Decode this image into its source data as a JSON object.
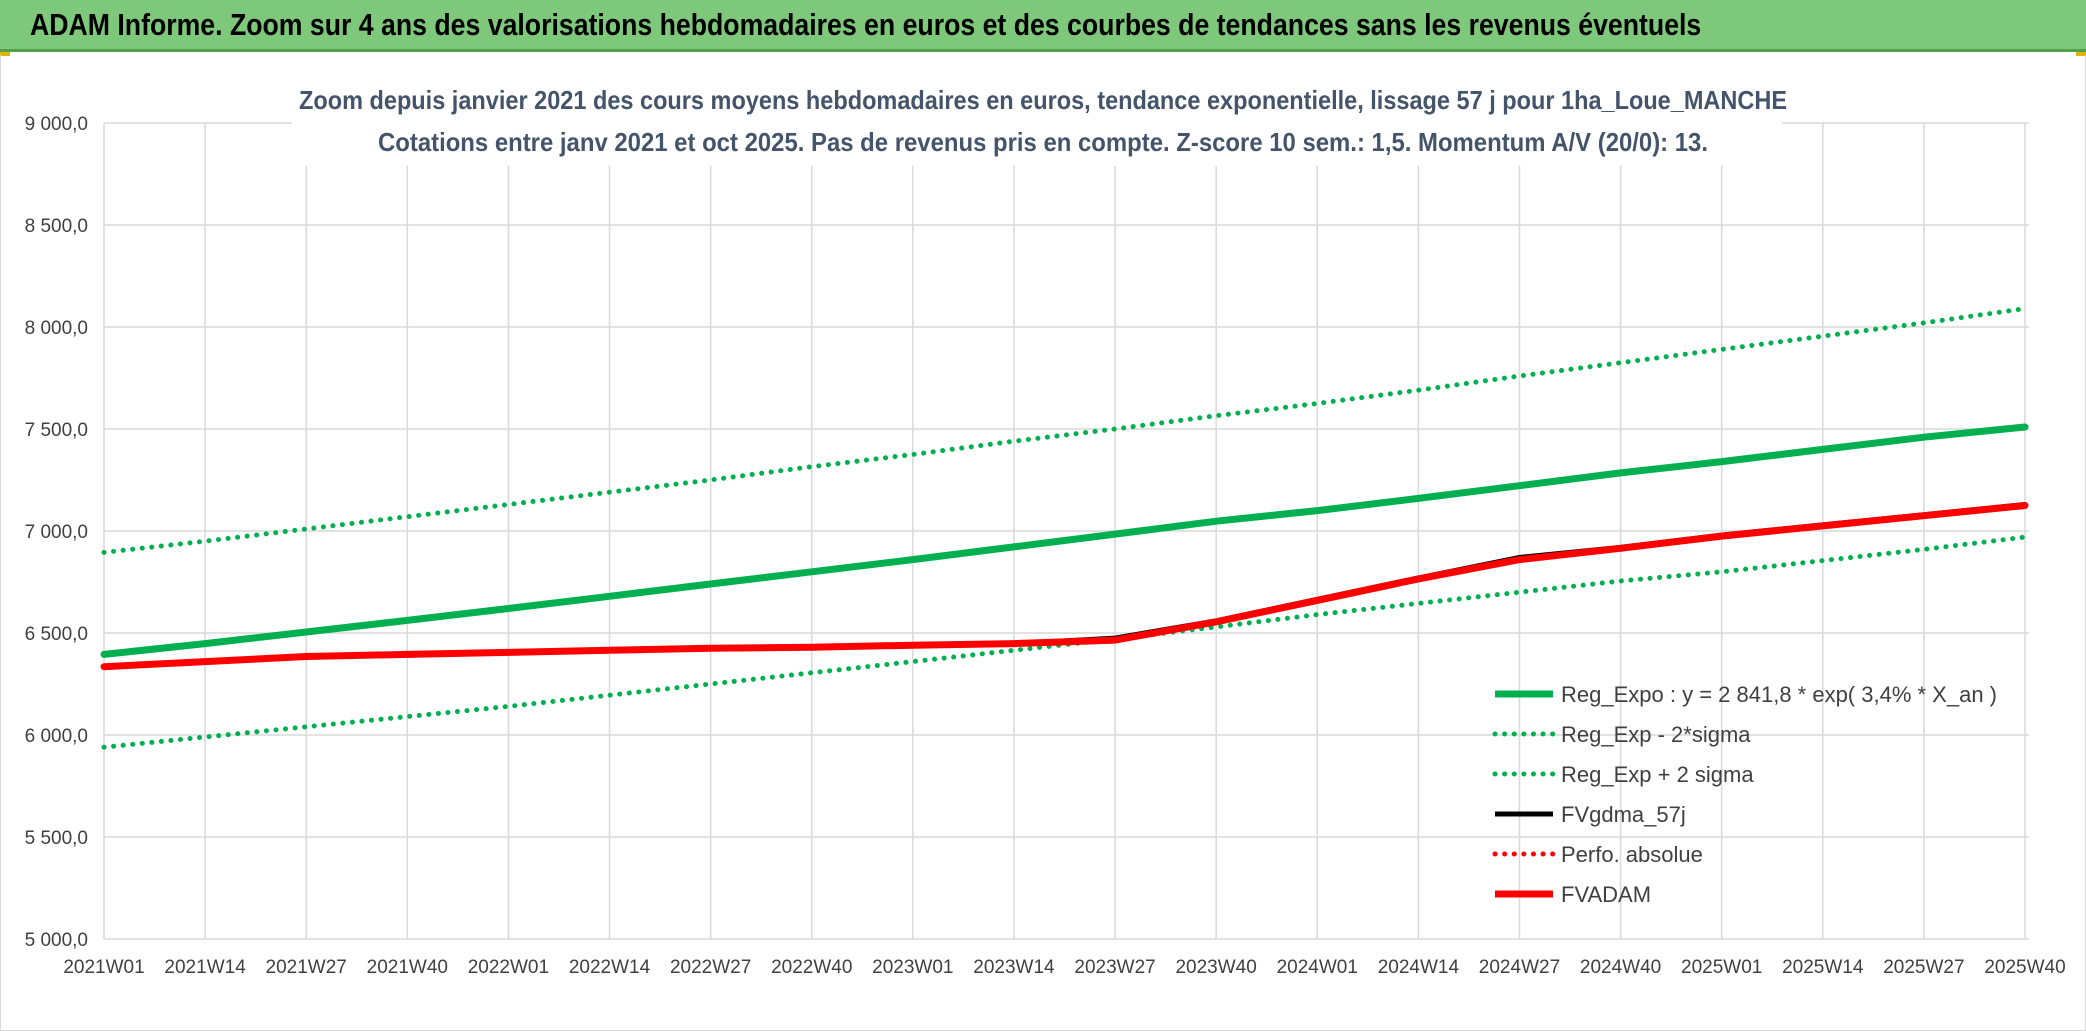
{
  "header": {
    "title": "ADAM Informe. Zoom sur 4 ans des valorisations hebdomadaires en euros et des courbes de tendances sans les revenus éventuels"
  },
  "colors": {
    "green": "#00b050",
    "black": "#000000",
    "red": "#ff0000",
    "grid": "#d9d9d9",
    "text": "#404040"
  },
  "chart_data": {
    "type": "line",
    "title_line1": "Zoom depuis janvier 2021 des cours moyens hebdomadaires en euros, tendance exponentielle, lissage 57 j pour 1ha_Loue_MANCHE",
    "title_line2": "Cotations entre janv 2021 et oct 2025. Pas de revenus pris en compte. Z-score 10 sem.: 1,5. Momentum A/V (20/0): 13.",
    "x_tick_labels": [
      "2021W01",
      "2021W14",
      "2021W27",
      "2021W40",
      "2022W01",
      "2022W14",
      "2022W27",
      "2022W40",
      "2023W01",
      "2023W14",
      "2023W27",
      "2023W40",
      "2024W01",
      "2024W14",
      "2024W27",
      "2024W40",
      "2025W01",
      "2025W14",
      "2025W27",
      "2025W40"
    ],
    "y_tick_labels": [
      "5 000,0",
      "5 500,0",
      "6 000,0",
      "6 500,0",
      "7 000,0",
      "7 500,0",
      "8 000,0",
      "8 500,0",
      "9 000,0"
    ],
    "ylim": [
      5000,
      9000
    ],
    "legend_position": "bottom-right",
    "series": [
      {
        "name": "Reg_Expo : y = 2 841,8 * exp( 3,4% *  X_an )",
        "style": "solid-thick",
        "color": "#00b050",
        "values": [
          6395,
          6448,
          6505,
          6562,
          6620,
          6680,
          6740,
          6800,
          6860,
          6922,
          6985,
          7048,
          7100,
          7160,
          7222,
          7285,
          7340,
          7400,
          7460,
          7510
        ]
      },
      {
        "name": "Reg_Exp - 2*sigma",
        "style": "dotted",
        "color": "#00b050",
        "values": [
          5940,
          5990,
          6040,
          6090,
          6140,
          6195,
          6250,
          6305,
          6360,
          6415,
          6470,
          6530,
          6590,
          6645,
          6700,
          6755,
          6800,
          6855,
          6910,
          6970
        ]
      },
      {
        "name": "Reg_Exp + 2 sigma",
        "style": "dotted",
        "color": "#00b050",
        "values": [
          6895,
          6950,
          7010,
          7070,
          7130,
          7190,
          7250,
          7315,
          7375,
          7440,
          7500,
          7565,
          7625,
          7690,
          7760,
          7825,
          7890,
          7955,
          8020,
          8090
        ]
      },
      {
        "name": "FVgdma_57j",
        "style": "solid",
        "color": "#000000",
        "values": [
          6335,
          6360,
          6385,
          6395,
          6405,
          6415,
          6425,
          6430,
          6440,
          6448,
          6475,
          6560,
          6665,
          6770,
          6870,
          6920,
          6980,
          7030,
          7080,
          7130
        ]
      },
      {
        "name": "Perfo. absolue",
        "style": "dotted",
        "color": "#ff0000",
        "values": [
          6335,
          6360,
          6385,
          6395,
          6405,
          6415,
          6425,
          6430,
          6440,
          6448,
          6465,
          6555,
          6660,
          6765,
          6860,
          6915,
          6975,
          7025,
          7075,
          7125
        ]
      },
      {
        "name": "FVADAM",
        "style": "solid-thick",
        "color": "#ff0000",
        "values": [
          6335,
          6360,
          6385,
          6395,
          6405,
          6415,
          6425,
          6430,
          6440,
          6448,
          6465,
          6555,
          6660,
          6765,
          6860,
          6915,
          6975,
          7025,
          7075,
          7125
        ]
      }
    ]
  }
}
